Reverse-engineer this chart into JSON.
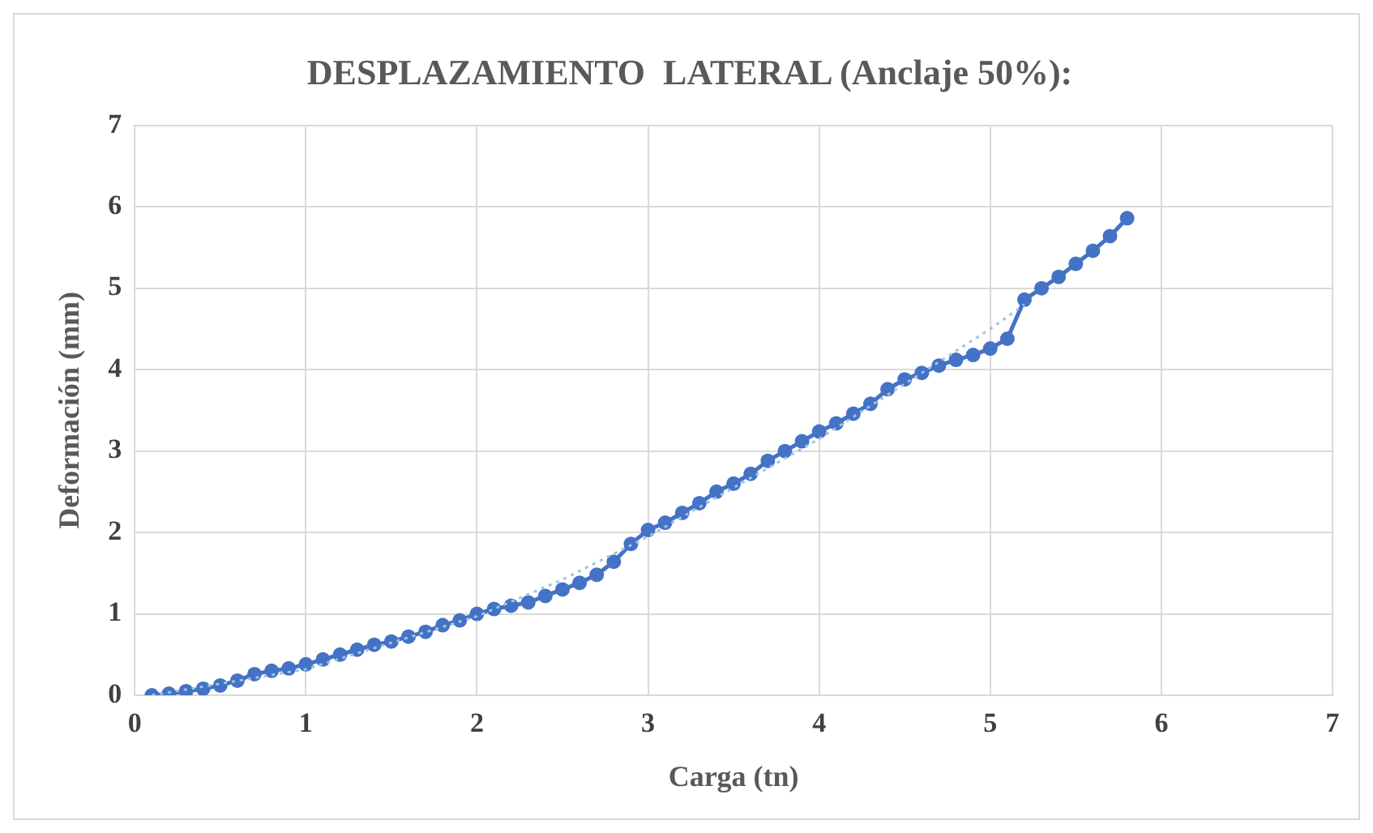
{
  "chart_data": {
    "type": "line",
    "title": "DESPLAZAMIENTO  LATERAL (Anclaje 50%):",
    "xlabel": "Carga (tn)",
    "ylabel": "Deformación (mm)",
    "xlim": [
      0,
      7
    ],
    "xticks": [
      0,
      1,
      2,
      3,
      4,
      5,
      6,
      7
    ],
    "ylim": [
      0,
      7
    ],
    "yticks": [
      0,
      1,
      2,
      3,
      4,
      5,
      6,
      7
    ],
    "grid": true,
    "legend": false,
    "marker": "circle",
    "line_style": "solid",
    "series": [
      {
        "color": "#4472c4",
        "x": [
          0.1,
          0.2,
          0.3,
          0.4,
          0.5,
          0.6,
          0.7,
          0.8,
          0.9,
          1.0,
          1.1,
          1.2,
          1.3,
          1.4,
          1.5,
          1.6,
          1.7,
          1.8,
          1.9,
          2.0,
          2.1,
          2.2,
          2.3,
          2.4,
          2.5,
          2.6,
          2.7,
          2.8,
          2.9,
          3.0,
          3.1,
          3.2,
          3.3,
          3.4,
          3.5,
          3.6,
          3.7,
          3.8,
          3.9,
          4.0,
          4.1,
          4.2,
          4.3,
          4.4,
          4.5,
          4.6,
          4.7,
          4.8,
          4.9,
          5.0,
          5.1,
          5.2,
          5.3,
          5.4,
          5.5,
          5.6,
          5.7,
          5.8
        ],
        "values": [
          0,
          0.02,
          0.05,
          0.08,
          0.12,
          0.18,
          0.26,
          0.3,
          0.33,
          0.38,
          0.44,
          0.5,
          0.56,
          0.62,
          0.66,
          0.72,
          0.78,
          0.86,
          0.92,
          1.0,
          1.06,
          1.1,
          1.14,
          1.22,
          1.3,
          1.38,
          1.48,
          1.64,
          1.86,
          2.03,
          2.12,
          2.24,
          2.36,
          2.5,
          2.6,
          2.72,
          2.88,
          3.0,
          3.12,
          3.24,
          3.34,
          3.46,
          3.58,
          3.76,
          3.88,
          3.96,
          4.05,
          4.12,
          4.18,
          4.26,
          4.38,
          4.86,
          5.0,
          5.14,
          5.3,
          5.46,
          5.64,
          5.86
        ]
      },
      {
        "type": "line",
        "color": "#9dc3e6",
        "marker": "none",
        "line_style": "dotted",
        "x": [
          0.1,
          1,
          2,
          2.5,
          3,
          4,
          5,
          5.2
        ],
        "values": [
          0,
          0.32,
          0.97,
          1.42,
          1.95,
          3.15,
          4.5,
          4.8
        ]
      }
    ]
  }
}
